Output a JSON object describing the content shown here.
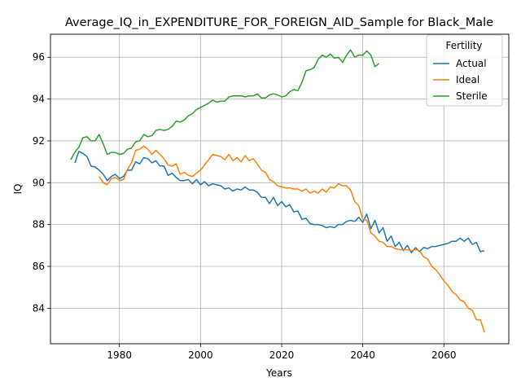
{
  "chart_data": {
    "type": "line",
    "title": "Average_IQ_in_EXPENDITURE_FOR_FOREIGN_AID_Sample for Black_Male",
    "xlabel": "Years",
    "ylabel": "IQ",
    "xlim": [
      1963,
      2076
    ],
    "ylim": [
      82.3,
      97.1
    ],
    "xticks": [
      1980,
      2000,
      2020,
      2040,
      2060
    ],
    "yticks": [
      84,
      86,
      88,
      90,
      92,
      94,
      96
    ],
    "grid": true,
    "legend": {
      "title": "Fertility",
      "placement": "top-right"
    },
    "series": [
      {
        "name": "Actual",
        "color": "#1f77b4",
        "x": [
          1969,
          1970,
          1971,
          1972,
          1973,
          1974,
          1975,
          1976,
          1977,
          1978,
          1979,
          1980,
          1981,
          1982,
          1983,
          1984,
          1985,
          1986,
          1987,
          1988,
          1989,
          1990,
          1991,
          1992,
          1993,
          1994,
          1995,
          1996,
          1997,
          1998,
          1999,
          2000,
          2001,
          2002,
          2003,
          2004,
          2005,
          2006,
          2007,
          2008,
          2009,
          2010,
          2011,
          2012,
          2013,
          2014,
          2015,
          2016,
          2017,
          2018,
          2019,
          2020,
          2021,
          2022,
          2023,
          2024,
          2025,
          2026,
          2027,
          2028,
          2029,
          2030,
          2031,
          2032,
          2033,
          2034,
          2035,
          2036,
          2037,
          2038,
          2039,
          2040,
          2041,
          2042,
          2043,
          2044,
          2045,
          2046,
          2047,
          2048,
          2049,
          2050,
          2051,
          2052,
          2053,
          2054,
          2055,
          2056,
          2057,
          2058,
          2059,
          2060,
          2061,
          2062,
          2063,
          2064,
          2065,
          2066,
          2067,
          2068,
          2069,
          2070
        ],
        "values": [
          90.95,
          91.5,
          91.4,
          91.25,
          90.8,
          90.75,
          90.6,
          90.4,
          90.1,
          90.3,
          90.4,
          90.2,
          90.3,
          90.6,
          90.6,
          91.0,
          90.9,
          91.2,
          91.15,
          90.95,
          91.05,
          90.8,
          90.8,
          90.35,
          90.45,
          90.25,
          90.1,
          90.1,
          90.15,
          89.95,
          90.15,
          89.9,
          90.05,
          89.85,
          89.95,
          89.9,
          89.85,
          89.7,
          89.75,
          89.6,
          89.7,
          89.65,
          89.8,
          89.65,
          89.65,
          89.55,
          89.3,
          89.3,
          89.0,
          89.3,
          88.9,
          89.1,
          88.85,
          88.95,
          88.6,
          88.65,
          88.25,
          88.3,
          88.05,
          88.0,
          88.0,
          87.95,
          87.85,
          87.9,
          87.85,
          88.0,
          88.0,
          88.15,
          88.2,
          88.15,
          88.35,
          88.1,
          88.5,
          87.8,
          88.2,
          87.6,
          87.85,
          87.2,
          87.45,
          86.95,
          87.15,
          86.75,
          87.0,
          86.65,
          86.9,
          86.7,
          86.9,
          86.85,
          86.95,
          86.95,
          87.0,
          87.05,
          87.1,
          87.2,
          87.2,
          87.35,
          87.2,
          87.35,
          87.05,
          87.15,
          86.7,
          86.75
        ]
      },
      {
        "name": "Ideal",
        "color": "#ff7f0e",
        "x": [
          1975,
          1976,
          1977,
          1978,
          1979,
          1980,
          1981,
          1982,
          1983,
          1984,
          1985,
          1986,
          1987,
          1988,
          1989,
          1990,
          1991,
          1992,
          1993,
          1994,
          1995,
          1996,
          1997,
          1998,
          1999,
          2000,
          2001,
          2002,
          2003,
          2004,
          2005,
          2006,
          2007,
          2008,
          2009,
          2010,
          2011,
          2012,
          2013,
          2014,
          2015,
          2016,
          2017,
          2018,
          2019,
          2020,
          2021,
          2022,
          2023,
          2024,
          2025,
          2026,
          2027,
          2028,
          2029,
          2030,
          2031,
          2032,
          2033,
          2034,
          2035,
          2036,
          2037,
          2038,
          2039,
          2040,
          2041,
          2042,
          2043,
          2044,
          2045,
          2046,
          2047,
          2048,
          2049,
          2050,
          2051,
          2052,
          2053,
          2054,
          2055,
          2056,
          2057,
          2058,
          2059,
          2060,
          2061,
          2062,
          2063,
          2064,
          2065,
          2066,
          2067,
          2068,
          2069,
          2070
        ],
        "values": [
          90.3,
          90.0,
          89.9,
          90.2,
          90.25,
          90.1,
          90.15,
          90.65,
          90.95,
          91.55,
          91.6,
          91.75,
          91.6,
          91.35,
          91.55,
          91.35,
          91.15,
          90.85,
          90.8,
          90.9,
          90.4,
          90.5,
          90.35,
          90.3,
          90.45,
          90.6,
          90.85,
          91.1,
          91.35,
          91.3,
          91.25,
          91.1,
          91.35,
          91.05,
          91.2,
          91.0,
          91.3,
          91.05,
          91.15,
          90.9,
          90.6,
          90.5,
          90.15,
          90.05,
          89.85,
          89.8,
          89.75,
          89.75,
          89.7,
          89.7,
          89.6,
          89.7,
          89.5,
          89.6,
          89.5,
          89.7,
          89.55,
          89.8,
          89.75,
          89.95,
          89.85,
          89.85,
          89.65,
          89.1,
          88.9,
          88.25,
          88.2,
          87.6,
          87.45,
          87.2,
          87.15,
          86.95,
          86.95,
          86.85,
          86.8,
          86.8,
          86.8,
          86.75,
          86.8,
          86.75,
          86.45,
          86.35,
          86.0,
          85.85,
          85.6,
          85.3,
          85.1,
          84.8,
          84.65,
          84.4,
          84.3,
          84.0,
          83.9,
          83.45,
          83.45,
          82.85
        ]
      },
      {
        "name": "Sterile",
        "color": "#2ca02c",
        "x": [
          1968,
          1969,
          1970,
          1971,
          1972,
          1973,
          1974,
          1975,
          1976,
          1977,
          1978,
          1979,
          1980,
          1981,
          1982,
          1983,
          1984,
          1985,
          1986,
          1987,
          1988,
          1989,
          1990,
          1991,
          1992,
          1993,
          1994,
          1995,
          1996,
          1997,
          1998,
          1999,
          2000,
          2001,
          2002,
          2003,
          2004,
          2005,
          2006,
          2007,
          2008,
          2009,
          2010,
          2011,
          2012,
          2013,
          2014,
          2015,
          2016,
          2017,
          2018,
          2019,
          2020,
          2021,
          2022,
          2023,
          2024,
          2025,
          2026,
          2027,
          2028,
          2029,
          2030,
          2031,
          2032,
          2033,
          2034,
          2035,
          2036,
          2037,
          2038,
          2039,
          2040,
          2041,
          2042,
          2043,
          2044
        ],
        "values": [
          91.1,
          91.45,
          91.7,
          92.15,
          92.2,
          92.0,
          92.0,
          92.3,
          91.85,
          91.35,
          91.45,
          91.45,
          91.35,
          91.4,
          91.6,
          91.65,
          91.95,
          92.0,
          92.3,
          92.2,
          92.25,
          92.5,
          92.55,
          92.5,
          92.55,
          92.7,
          92.95,
          92.9,
          93.0,
          93.2,
          93.3,
          93.5,
          93.6,
          93.7,
          93.8,
          93.95,
          93.85,
          93.9,
          93.9,
          94.1,
          94.15,
          94.15,
          94.15,
          94.1,
          94.15,
          94.15,
          94.25,
          94.05,
          94.05,
          94.2,
          94.25,
          94.2,
          94.1,
          94.15,
          94.35,
          94.45,
          94.4,
          94.8,
          95.35,
          95.4,
          95.5,
          95.9,
          96.1,
          96.0,
          96.15,
          95.95,
          96.0,
          95.75,
          96.1,
          96.35,
          96.0,
          96.1,
          96.1,
          96.3,
          96.1,
          95.55,
          95.7
        ]
      }
    ]
  }
}
